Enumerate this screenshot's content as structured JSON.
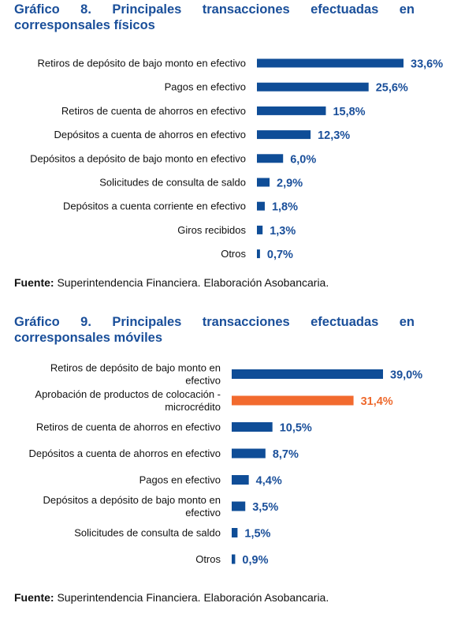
{
  "colors": {
    "bar": "#0f4d97",
    "highlight": "#f26a2e",
    "title": "#1a4f9a"
  },
  "chart_data": [
    {
      "type": "bar",
      "orientation": "horizontal",
      "title": "Gráfico 8. Principales transacciones efectuadas en corresponsales físicos",
      "categories": [
        "Retiros de depósito de bajo monto en efectivo",
        "Pagos en efectivo",
        "Retiros de cuenta de ahorros en efectivo",
        "Depósitos a cuenta de ahorros en efectivo",
        "Depósitos a depósito de bajo monto en efectivo",
        "Solicitudes de consulta de saldo",
        "Depósitos a cuenta corriente en efectivo",
        "Giros recibidos",
        "Otros"
      ],
      "values": [
        33.6,
        25.6,
        15.8,
        12.3,
        6.0,
        2.9,
        1.8,
        1.3,
        0.7
      ],
      "value_labels": [
        "33,6%",
        "25,6%",
        "15,8%",
        "12,3%",
        "6,0%",
        "2,9%",
        "1,8%",
        "1,3%",
        "0,7%"
      ],
      "highlight_index": -1,
      "xlim": [
        0,
        33.6
      ],
      "source_label": "Fuente:",
      "source_text": " Superintendencia Financiera. Elaboración Asobancaria."
    },
    {
      "type": "bar",
      "orientation": "horizontal",
      "title": "Gráfico 9. Principales transacciones efectuadas en corresponsales móviles",
      "categories": [
        "Retiros de depósito de bajo monto en efectivo",
        "Aprobación de productos de colocación - microcrédito",
        "Retiros de cuenta de ahorros en efectivo",
        "Depósitos a cuenta de ahorros en efectivo",
        "Pagos en efectivo",
        "Depósitos a depósito de bajo monto en efectivo",
        "Solicitudes de consulta de saldo",
        "Otros"
      ],
      "label_lines": [
        [
          "Retiros de depósito de bajo monto en",
          "efectivo"
        ],
        [
          "Aprobación de productos de colocación -",
          "microcrédito"
        ],
        [
          "Retiros de cuenta de ahorros en efectivo"
        ],
        [
          "Depósitos a cuenta de ahorros en efectivo"
        ],
        [
          "Pagos en efectivo"
        ],
        [
          "Depósitos a depósito de bajo monto en",
          "efectivo"
        ],
        [
          "Solicitudes de consulta de saldo"
        ],
        [
          "Otros"
        ]
      ],
      "values": [
        39.0,
        31.4,
        10.5,
        8.7,
        4.4,
        3.5,
        1.5,
        0.9
      ],
      "value_labels": [
        "39,0%",
        "31,4%",
        "10,5%",
        "8,7%",
        "4,4%",
        "3,5%",
        "1,5%",
        "0,9%"
      ],
      "highlight_index": 1,
      "xlim": [
        0,
        39.0
      ],
      "source_label": "Fuente:",
      "source_text": " Superintendencia Financiera. Elaboración Asobancaria."
    }
  ]
}
